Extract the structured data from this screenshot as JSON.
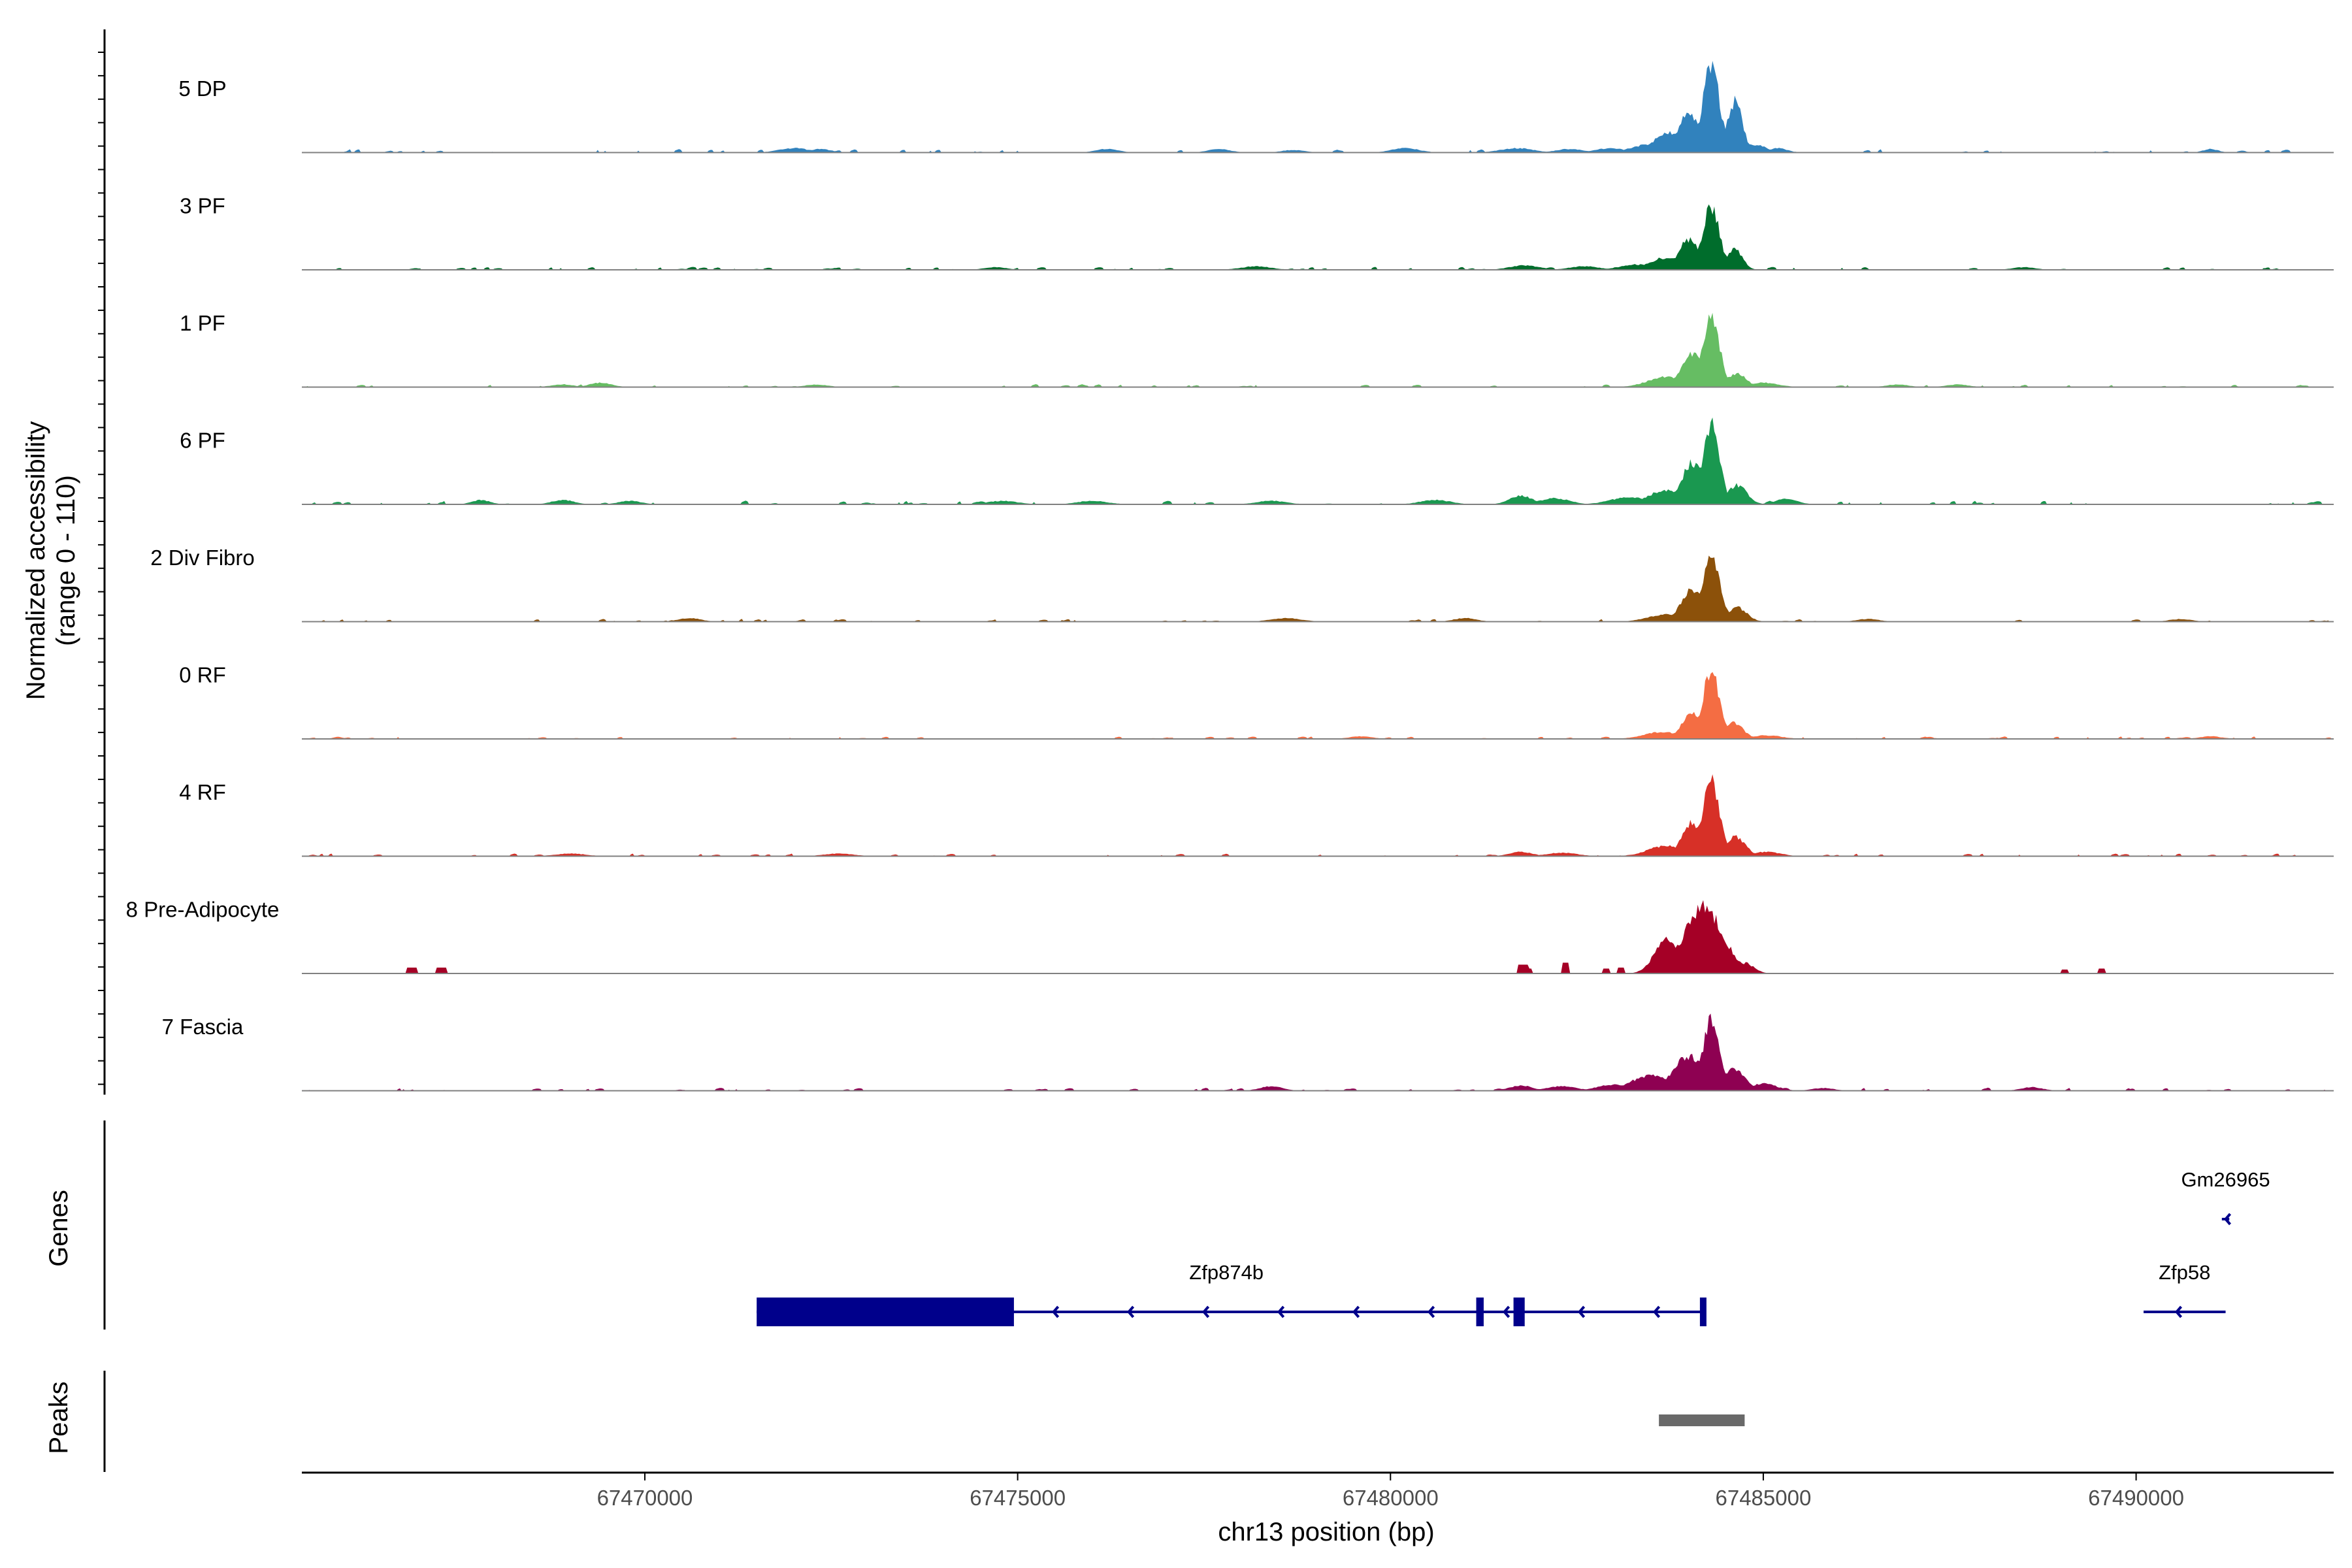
{
  "chart_data": {
    "type": "area",
    "title": "",
    "xlabel": "chr13 position (bp)",
    "ylabel_line1": "Normalized accessibility",
    "ylabel_line2": "(range 0 - 110)",
    "ylim": [
      0,
      110
    ],
    "xlim": [
      67465400,
      67492650
    ],
    "x_ticks": [
      67470000,
      67475000,
      67480000,
      67485000,
      67490000
    ],
    "x_tick_labels": [
      "67470000",
      "67475000",
      "67480000",
      "67485000",
      "67490000"
    ],
    "tracks": [
      {
        "name": "5 DP",
        "color": "#3182bd",
        "peaks": [
          [
            67484300,
            102,
            110
          ],
          [
            67484000,
            48,
            130
          ],
          [
            67484620,
            58,
            100
          ],
          [
            67483750,
            22,
            220
          ],
          [
            67483450,
            9,
            220
          ],
          [
            67484900,
            9,
            140
          ],
          [
            67485200,
            5,
            120
          ],
          [
            67472000,
            5,
            200
          ],
          [
            67472350,
            4,
            150
          ],
          [
            67480200,
            5,
            180
          ],
          [
            67481700,
            5,
            220
          ],
          [
            67482400,
            4,
            180
          ],
          [
            67482950,
            5,
            200
          ],
          [
            67476200,
            4,
            150
          ],
          [
            67477700,
            4,
            150
          ],
          [
            67478700,
            3,
            150
          ],
          [
            67491000,
            4,
            100
          ]
        ],
        "noise": 2.2,
        "noise_density": 0.5,
        "seed": 11
      },
      {
        "name": "3 PF",
        "color": "#006d2c",
        "peaks": [
          [
            67484300,
            73,
            110
          ],
          [
            67484000,
            34,
            140
          ],
          [
            67484620,
            24,
            100
          ],
          [
            67483700,
            14,
            220
          ],
          [
            67483300,
            6,
            220
          ],
          [
            67481800,
            5,
            200
          ],
          [
            67482600,
            4,
            200
          ],
          [
            67478200,
            4,
            200
          ],
          [
            67474700,
            3,
            150
          ],
          [
            67488500,
            3,
            150
          ]
        ],
        "noise": 2.0,
        "noise_density": 0.45,
        "seed": 23
      },
      {
        "name": "1 PF",
        "color": "#66bd63",
        "peaks": [
          [
            67484300,
            82,
            110
          ],
          [
            67484050,
            38,
            140
          ],
          [
            67484650,
            16,
            120
          ],
          [
            67483700,
            12,
            240
          ],
          [
            67485000,
            5,
            200
          ],
          [
            67469400,
            5,
            150
          ],
          [
            67468900,
            3,
            150
          ],
          [
            67472300,
            3,
            150
          ],
          [
            67486800,
            3,
            150
          ],
          [
            67487600,
            3,
            150
          ]
        ],
        "noise": 1.9,
        "noise_density": 0.45,
        "seed": 37
      },
      {
        "name": "6 PF",
        "color": "#1a9850",
        "peaks": [
          [
            67484300,
            92,
            110
          ],
          [
            67484050,
            48,
            140
          ],
          [
            67484650,
            22,
            130
          ],
          [
            67483700,
            16,
            240
          ],
          [
            67483200,
            8,
            250
          ],
          [
            67481750,
            10,
            150
          ],
          [
            67482200,
            7,
            200
          ],
          [
            67485300,
            6,
            150
          ],
          [
            67467800,
            5,
            120
          ],
          [
            67468900,
            5,
            150
          ],
          [
            67469800,
            4,
            150
          ],
          [
            67474800,
            4,
            200
          ],
          [
            67476000,
            4,
            200
          ],
          [
            67480600,
            5,
            200
          ],
          [
            67478400,
            4,
            200
          ]
        ],
        "noise": 2.4,
        "noise_density": 0.55,
        "seed": 41
      },
      {
        "name": "2 Div Fibro",
        "color": "#8c510a",
        "peaks": [
          [
            67484300,
            70,
            120
          ],
          [
            67484050,
            36,
            150
          ],
          [
            67484650,
            16,
            130
          ],
          [
            67483700,
            8,
            240
          ],
          [
            67470600,
            4,
            150
          ],
          [
            67478600,
            4,
            200
          ],
          [
            67481000,
            4,
            150
          ],
          [
            67486400,
            3,
            150
          ],
          [
            67490600,
            3,
            150
          ]
        ],
        "noise": 1.8,
        "noise_density": 0.5,
        "seed": 53
      },
      {
        "name": "0 RF",
        "color": "#f46d43",
        "peaks": [
          [
            67484300,
            78,
            110
          ],
          [
            67484050,
            30,
            140
          ],
          [
            67484600,
            18,
            130
          ],
          [
            67483650,
            8,
            240
          ],
          [
            67485050,
            4,
            200
          ],
          [
            67491000,
            3,
            150
          ],
          [
            67479600,
            3,
            150
          ]
        ],
        "noise": 1.6,
        "noise_density": 0.5,
        "seed": 67
      },
      {
        "name": "4 RF",
        "color": "#d73027",
        "peaks": [
          [
            67484300,
            88,
            110
          ],
          [
            67484050,
            38,
            140
          ],
          [
            67484630,
            22,
            130
          ],
          [
            67483700,
            12,
            240
          ],
          [
            67481750,
            5,
            150
          ],
          [
            67482300,
            4,
            200
          ],
          [
            67485050,
            5,
            180
          ],
          [
            67469000,
            3,
            200
          ],
          [
            67472600,
            3,
            200
          ]
        ],
        "noise": 1.8,
        "noise_density": 0.5,
        "seed": 79
      },
      {
        "name": "8 Pre-Adipocyte",
        "color": "#a50026",
        "peaks": [
          [
            67484200,
            75,
            260
          ],
          [
            67483700,
            38,
            160
          ],
          [
            67484750,
            12,
            120
          ]
        ],
        "blocks": [
          [
            67466800,
            67466950,
            6
          ],
          [
            67467200,
            67467350,
            6
          ],
          [
            67481700,
            67481850,
            9
          ],
          [
            67481800,
            67481900,
            5
          ],
          [
            67482300,
            67482400,
            11
          ],
          [
            67482850,
            67482950,
            5
          ],
          [
            67483050,
            67483150,
            6
          ],
          [
            67489000,
            67489100,
            4
          ],
          [
            67489500,
            67489600,
            5
          ]
        ],
        "noise": 0,
        "noise_density": 0,
        "seed": 83
      },
      {
        "name": "7 Fascia",
        "color": "#8e0152",
        "peaks": [
          [
            67484300,
            80,
            110
          ],
          [
            67484000,
            40,
            200
          ],
          [
            67484600,
            25,
            150
          ],
          [
            67483500,
            18,
            260
          ],
          [
            67483000,
            7,
            220
          ],
          [
            67485000,
            8,
            180
          ],
          [
            67481750,
            6,
            150
          ],
          [
            67482300,
            5,
            200
          ],
          [
            67478400,
            5,
            150
          ],
          [
            67485800,
            3,
            150
          ],
          [
            67488600,
            4,
            150
          ]
        ],
        "noise": 2.0,
        "noise_density": 0.5,
        "seed": 97
      }
    ],
    "genes_panel_label": "Genes",
    "peaks_panel_label": "Peaks",
    "genes": [
      {
        "name": "Zfp874b",
        "strand": "-",
        "start": 67471500,
        "end": 67484200,
        "exons": [
          [
            67471500,
            67474950
          ],
          [
            67481150,
            67481250
          ],
          [
            67481650,
            67481800
          ],
          [
            67484150,
            67484200
          ]
        ],
        "label_x": 67477800,
        "row": 1
      },
      {
        "name": "Gm26965",
        "strand": "-",
        "start": 67491150,
        "end": 67491250,
        "exons": [],
        "label_x": 67491200,
        "row": 0
      },
      {
        "name": "Zfp58",
        "strand": "-",
        "start": 67490100,
        "end": 67491200,
        "exons": [],
        "label_x": 67490650,
        "row": 1
      }
    ],
    "peaks": [
      [
        67483600,
        67484750
      ]
    ],
    "colors": {
      "gene": "#00008b",
      "peak": "#696969",
      "baseline": "#808080",
      "axis": "#000000"
    }
  }
}
